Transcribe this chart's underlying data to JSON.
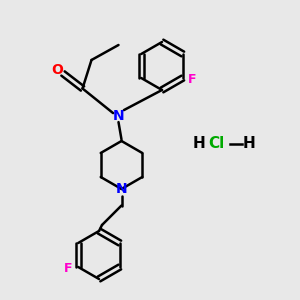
{
  "background_color": "#e8e8e8",
  "bond_color": "#000000",
  "nitrogen_color": "#0000ff",
  "oxygen_color": "#ff0000",
  "fluorine_color": "#ff00cc",
  "hcl_color": "#00aa00",
  "line_width": 1.8,
  "fig_size": [
    3.0,
    3.0
  ],
  "dpi": 100,
  "xlim": [
    0,
    10
  ],
  "ylim": [
    0,
    10
  ]
}
